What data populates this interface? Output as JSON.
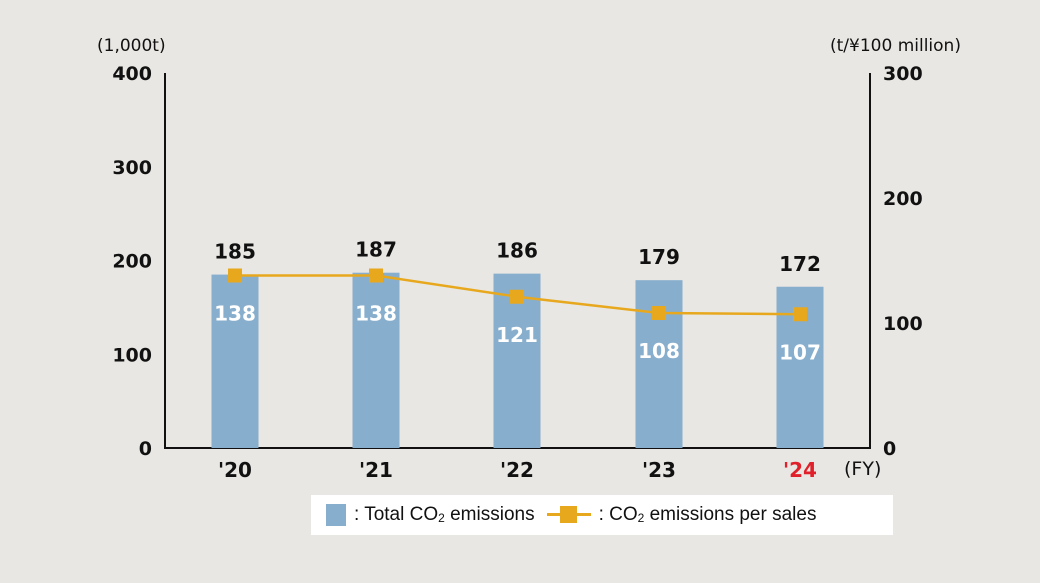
{
  "chart_data": {
    "type": "bar+line",
    "title": "",
    "categories": [
      "'20",
      "'21",
      "'22",
      "'23",
      "'24"
    ],
    "highlight_category": "'24",
    "x_unit_label": "(FY)",
    "left_axis": {
      "unit_label": "(1,000t)",
      "ticks": [
        "0",
        "100",
        "200",
        "300",
        "400"
      ],
      "ylim": [
        0,
        400
      ]
    },
    "right_axis": {
      "unit_label": "(t/¥100 million)",
      "ticks": [
        "0",
        "100",
        "200",
        "300"
      ],
      "ylim": [
        0,
        300
      ]
    },
    "series": [
      {
        "name": "Total CO2 emissions",
        "type": "bar",
        "axis": "left",
        "color": "#87aecd",
        "values": [
          185,
          187,
          186,
          179,
          172
        ],
        "labels": [
          "185",
          "187",
          "186",
          "179",
          "172"
        ]
      },
      {
        "name": "CO2 emissions per sales",
        "type": "line",
        "axis": "right",
        "color": "#e8a81e",
        "values": [
          138,
          138,
          121,
          108,
          107
        ],
        "labels": [
          "138",
          "138",
          "121",
          "108",
          "107"
        ]
      }
    ],
    "grid": false,
    "legend_position": "bottom"
  },
  "legend": {
    "total_prefix": ": Total CO",
    "total_sub": "2",
    "total_suffix": " emissions",
    "ratio_prefix": ": CO",
    "ratio_sub": "2",
    "ratio_suffix": " emissions per sales"
  },
  "colors": {
    "background": "#e8e7e3",
    "bar": "#87aecd",
    "line": "#e8a81e",
    "highlight": "#e0202a",
    "axis": "#111111"
  }
}
